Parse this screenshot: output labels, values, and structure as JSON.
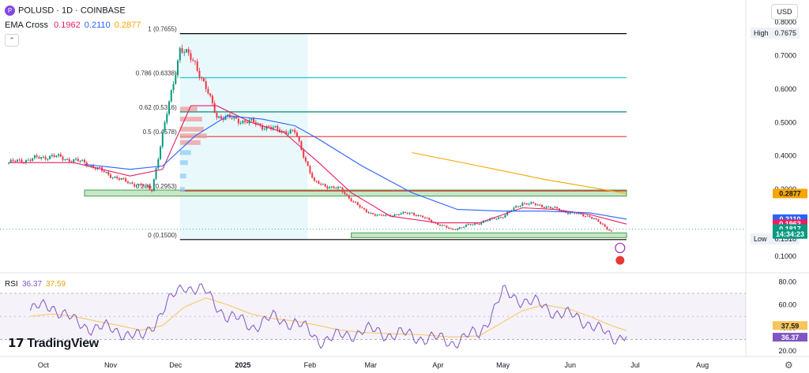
{
  "header": {
    "logo_letter": "P",
    "title": "POLUSD · 1D · COINBASE",
    "indicator_label": "EMA Cross",
    "ema_values": [
      "0.1962",
      "0.2110",
      "0.2877"
    ],
    "ema_colors": [
      "#e91e63",
      "#2962ff",
      "#f7a600"
    ],
    "collapse_glyph": "⌃"
  },
  "currency_button": "USD",
  "brand": "TradingView",
  "settings_icon": "gear-icon",
  "chart_data": {
    "type": "candlestick",
    "symbol": "POLUSD",
    "timeframe": "1D",
    "exchange": "COINBASE",
    "ylim": [
      0.06,
      0.8
    ],
    "y_ticks": [
      "0.8000",
      "0.7000",
      "0.6000",
      "0.5000",
      "0.4000",
      "0.3000",
      "0.2000",
      "0.1000"
    ],
    "x_ticks": [
      "Oct",
      "Nov",
      "Dec",
      "2025",
      "Feb",
      "Mar",
      "Apr",
      "May",
      "Jun",
      "Jul",
      "Aug"
    ],
    "x_tick_dates": [
      "2024-10-01",
      "2024-11-01",
      "2024-12-01",
      "2025-01-01",
      "2025-02-01",
      "2025-03-01",
      "2025-04-01",
      "2025-05-01",
      "2025-06-01",
      "2025-07-01",
      "2025-08-01"
    ],
    "price_key_dates": [
      "2024-09-15",
      "2024-10-05",
      "2024-10-20",
      "2024-11-05",
      "2024-11-20",
      "2024-12-03",
      "2024-12-10",
      "2024-12-20",
      "2025-01-05",
      "2025-01-15",
      "2025-01-25",
      "2025-02-03",
      "2025-02-15",
      "2025-02-25",
      "2025-03-05",
      "2025-03-20",
      "2025-04-07",
      "2025-04-20",
      "2025-05-01",
      "2025-05-10",
      "2025-05-20",
      "2025-06-01",
      "2025-06-10",
      "2025-06-20"
    ],
    "price_key_values": [
      0.38,
      0.4,
      0.38,
      0.33,
      0.3,
      0.72,
      0.68,
      0.52,
      0.5,
      0.48,
      0.47,
      0.32,
      0.3,
      0.24,
      0.22,
      0.23,
      0.18,
      0.2,
      0.22,
      0.26,
      0.25,
      0.23,
      0.22,
      0.175
    ],
    "fib_levels": [
      {
        "label": "1 (0.7655)",
        "value": 0.7655,
        "color": "#000000"
      },
      {
        "label": "0.786 (0.6338)",
        "value": 0.6338,
        "color": "#26c6da"
      },
      {
        "label": "0.62 (0.5316)",
        "value": 0.5316,
        "color": "#00897b"
      },
      {
        "label": "0.5 (0.4578)",
        "value": 0.4578,
        "color": "#e53935"
      },
      {
        "label": "0.236 (0.2953)",
        "value": 0.2953,
        "color": "#e53935"
      },
      {
        "label": "0 (0.1500)",
        "value": 0.15,
        "color": "#000000"
      }
    ],
    "fib_start_date": "2024-12-03",
    "fib_end_date": "2025-06-27",
    "fib_zone_end_date": "2025-01-31",
    "support_zones": [
      {
        "from_date": "2024-10-20",
        "to_date": "2025-06-27",
        "low": 0.28,
        "high": 0.298
      },
      {
        "from_date": "2025-02-20",
        "to_date": "2025-06-27",
        "low": 0.156,
        "high": 0.17
      }
    ],
    "ema_series": [
      {
        "name": "0.1962",
        "color": "#e91e63",
        "dates": [
          "2024-09-15",
          "2024-10-15",
          "2024-11-10",
          "2024-11-25",
          "2024-12-08",
          "2024-12-20",
          "2025-01-05",
          "2025-01-20",
          "2025-02-05",
          "2025-02-20",
          "2025-03-10",
          "2025-04-01",
          "2025-04-20",
          "2025-05-10",
          "2025-05-25",
          "2025-06-10",
          "2025-06-27"
        ],
        "values": [
          0.38,
          0.38,
          0.34,
          0.36,
          0.55,
          0.55,
          0.5,
          0.47,
          0.38,
          0.29,
          0.22,
          0.2,
          0.2,
          0.245,
          0.24,
          0.225,
          0.1962
        ]
      },
      {
        "name": "0.2110",
        "color": "#2962ff",
        "dates": [
          "2024-10-20",
          "2024-11-10",
          "2024-11-25",
          "2024-12-10",
          "2024-12-25",
          "2025-01-10",
          "2025-01-25",
          "2025-02-05",
          "2025-02-25",
          "2025-03-20",
          "2025-04-10",
          "2025-05-01",
          "2025-05-20",
          "2025-06-10",
          "2025-06-27"
        ],
        "values": [
          0.375,
          0.36,
          0.37,
          0.46,
          0.52,
          0.51,
          0.49,
          0.45,
          0.37,
          0.29,
          0.24,
          0.235,
          0.235,
          0.23,
          0.211
        ]
      },
      {
        "name": "0.2877",
        "color": "#f7a600",
        "dates": [
          "2025-03-20",
          "2025-04-20",
          "2025-05-20",
          "2025-06-27"
        ],
        "values": [
          0.41,
          0.37,
          0.33,
          0.2877
        ]
      }
    ],
    "price_labels": [
      {
        "text": "0.2877",
        "value": 0.2877,
        "bg": "#f7a600",
        "fg": "#131722"
      },
      {
        "text": "0.2110",
        "value": 0.211,
        "bg": "#2962ff",
        "fg": "#ffffff"
      },
      {
        "text": "0.1962",
        "value": 0.1962,
        "bg": "#e91e63",
        "fg": "#ffffff"
      },
      {
        "text": "0.1817",
        "value": 0.1817,
        "bg": "#089981",
        "fg": "#ffffff"
      },
      {
        "text": "14:34:23",
        "value": 0.1665,
        "bg": "#089981",
        "fg": "#ffffff"
      }
    ],
    "high_label": "High",
    "high_value": "0.7675",
    "high_price": 0.7675,
    "low_label": "Low",
    "low_value": "0.1518",
    "low_price": 0.1518,
    "current_price": 0.1817,
    "rsi": {
      "label": "RSI",
      "value": "36.37",
      "ma_value": "37.59",
      "ylim": [
        20,
        85
      ],
      "ticks": [
        "80.00",
        "60.00",
        "40.00",
        "20.00"
      ],
      "overbought": 70,
      "oversold": 30,
      "rsi_color": "#7e57c2",
      "ma_color": "#f7c55b",
      "dates": [
        "2024-09-25",
        "2024-10-05",
        "2024-10-15",
        "2024-10-25",
        "2024-11-05",
        "2024-11-15",
        "2024-11-25",
        "2024-12-05",
        "2024-12-15",
        "2024-12-25",
        "2025-01-05",
        "2025-01-15",
        "2025-01-25",
        "2025-02-05",
        "2025-02-15",
        "2025-02-25",
        "2025-03-10",
        "2025-03-25",
        "2025-04-07",
        "2025-04-20",
        "2025-05-01",
        "2025-05-10",
        "2025-05-20",
        "2025-06-01",
        "2025-06-10",
        "2025-06-20",
        "2025-06-27"
      ],
      "values": [
        55,
        60,
        45,
        40,
        38,
        30,
        55,
        78,
        70,
        50,
        42,
        48,
        45,
        30,
        32,
        38,
        35,
        32,
        28,
        35,
        70,
        65,
        58,
        50,
        45,
        30,
        36.37
      ],
      "ma_values": [
        50,
        52,
        50,
        46,
        42,
        38,
        42,
        58,
        66,
        60,
        52,
        48,
        46,
        42,
        38,
        36,
        35,
        34,
        32,
        33,
        45,
        55,
        60,
        56,
        50,
        42,
        37.59
      ]
    }
  }
}
